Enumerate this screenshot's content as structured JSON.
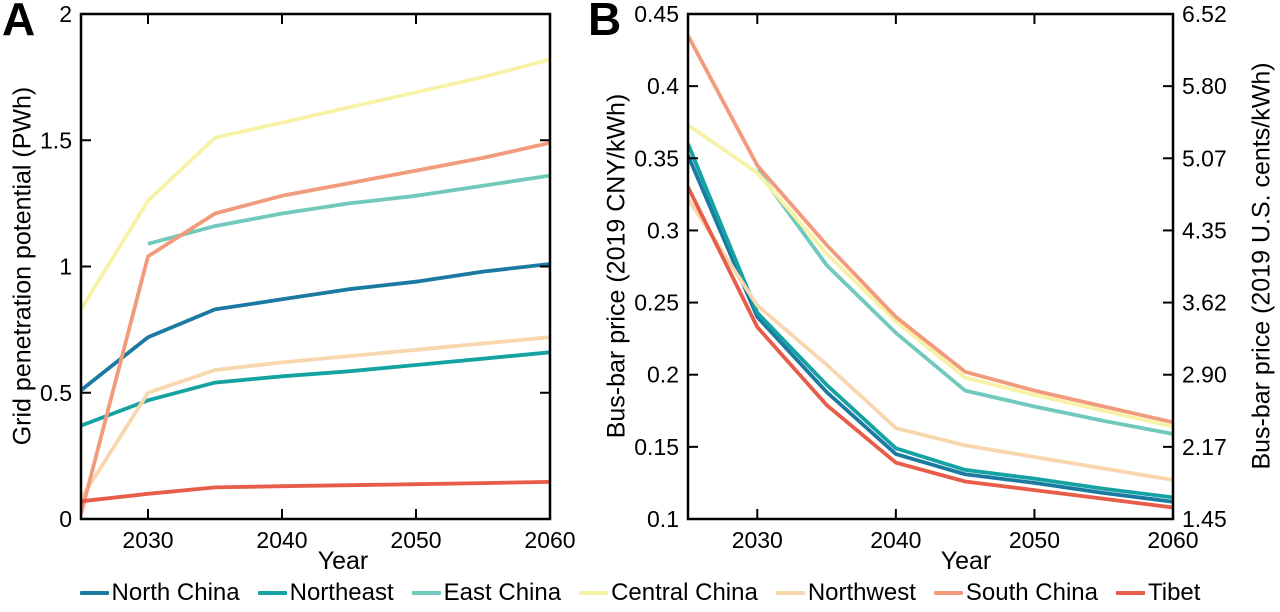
{
  "figure": {
    "background": "#ffffff",
    "text_color": "#000000",
    "axis_color": "#000000"
  },
  "legend": {
    "position": "bottom-center",
    "entries": [
      {
        "label": "North China",
        "color": "#1b7aa2"
      },
      {
        "label": "Northeast",
        "color": "#15a2a2"
      },
      {
        "label": "East China",
        "color": "#70c9bc"
      },
      {
        "label": "Central China",
        "color": "#f7f2a5"
      },
      {
        "label": "Northwest",
        "color": "#f9d7ae"
      },
      {
        "label": "South China",
        "color": "#f29b7c"
      },
      {
        "label": "Tibet",
        "color": "#e85c4a"
      }
    ]
  },
  "chart_data": [
    {
      "type": "line",
      "panel_label": "A",
      "xlabel": "Year",
      "ylabel": "Grid penetration potential (PWh)",
      "xlim": [
        2025,
        2060
      ],
      "ylim": [
        0,
        2
      ],
      "xticks": [
        2030,
        2040,
        2050,
        2060
      ],
      "xtick_labels": [
        "2030",
        "2040",
        "2050",
        "2060"
      ],
      "yticks": [
        0,
        0.5,
        1,
        1.5,
        2
      ],
      "ytick_labels": [
        "0",
        "0.5",
        "1",
        "1.5",
        "2"
      ],
      "grid": false,
      "x": [
        2025,
        2030,
        2035,
        2040,
        2045,
        2050,
        2055,
        2060
      ],
      "series": [
        {
          "name": "North China",
          "color": "#1b7aa2",
          "values": [
            0.51,
            0.72,
            0.83,
            0.87,
            0.91,
            0.94,
            0.98,
            1.01
          ]
        },
        {
          "name": "Northeast",
          "color": "#15a2a2",
          "values": [
            0.37,
            0.47,
            0.54,
            0.565,
            0.585,
            0.61,
            0.635,
            0.66
          ]
        },
        {
          "name": "East China",
          "color": "#70c9bc",
          "values": [
            null,
            1.09,
            1.16,
            1.21,
            1.25,
            1.28,
            1.32,
            1.36
          ]
        },
        {
          "name": "Central China",
          "color": "#f7f2a5",
          "values": [
            0.83,
            1.26,
            1.51,
            1.57,
            1.63,
            1.69,
            1.75,
            1.82
          ]
        },
        {
          "name": "Northwest",
          "color": "#f9d7ae",
          "values": [
            0.08,
            0.5,
            0.59,
            0.62,
            0.645,
            0.67,
            0.695,
            0.72
          ]
        },
        {
          "name": "South China",
          "color": "#f29b7c",
          "values": [
            0.02,
            1.04,
            1.21,
            1.28,
            1.33,
            1.38,
            1.43,
            1.49
          ]
        },
        {
          "name": "Tibet",
          "color": "#e85c4a",
          "values": [
            0.07,
            0.1,
            0.125,
            0.13,
            0.134,
            0.138,
            0.142,
            0.147
          ]
        }
      ]
    },
    {
      "type": "line",
      "panel_label": "B",
      "xlabel": "Year",
      "ylabel": "Bus-bar price (2019 CNY/kWh)",
      "ylabel_right": "Bus-bar price (2019 U.S. cents/kWh)",
      "xlim": [
        2025,
        2060
      ],
      "ylim": [
        0.1,
        0.45
      ],
      "xticks": [
        2030,
        2040,
        2050,
        2060
      ],
      "xtick_labels": [
        "2030",
        "2040",
        "2050",
        "2060"
      ],
      "yticks": [
        0.1,
        0.15,
        0.2,
        0.25,
        0.3,
        0.35,
        0.4,
        0.45
      ],
      "ytick_labels": [
        "0.1",
        "0.15",
        "0.2",
        "0.25",
        "0.3",
        "0.35",
        "0.4",
        "0.45"
      ],
      "ytick_labels_right": [
        "1.45",
        "2.17",
        "2.90",
        "3.62",
        "4.35",
        "5.07",
        "5.80",
        "6.52"
      ],
      "grid": false,
      "x": [
        2025,
        2030,
        2035,
        2040,
        2045,
        2050,
        2055,
        2060
      ],
      "series": [
        {
          "name": "North China",
          "color": "#1b7aa2",
          "values": [
            0.352,
            0.24,
            0.188,
            0.145,
            0.131,
            0.125,
            0.118,
            0.112
          ]
        },
        {
          "name": "Northeast",
          "color": "#15a2a2",
          "values": [
            0.36,
            0.243,
            0.193,
            0.149,
            0.134,
            0.128,
            0.121,
            0.115
          ]
        },
        {
          "name": "East China",
          "color": "#70c9bc",
          "values": [
            null,
            0.342,
            0.276,
            0.229,
            0.189,
            0.178,
            0.168,
            0.159
          ]
        },
        {
          "name": "Central China",
          "color": "#f7f2a5",
          "values": [
            0.373,
            0.34,
            0.284,
            0.237,
            0.198,
            0.186,
            0.175,
            0.164
          ]
        },
        {
          "name": "Northwest",
          "color": "#f9d7ae",
          "values": [
            0.322,
            0.248,
            0.207,
            0.163,
            0.151,
            0.143,
            0.135,
            0.127
          ]
        },
        {
          "name": "South China",
          "color": "#f29b7c",
          "values": [
            0.435,
            0.345,
            0.29,
            0.24,
            0.202,
            0.189,
            0.178,
            0.167
          ]
        },
        {
          "name": "Tibet",
          "color": "#e85c4a",
          "values": [
            0.33,
            0.233,
            0.179,
            0.139,
            0.126,
            0.12,
            0.114,
            0.108
          ]
        }
      ]
    }
  ]
}
